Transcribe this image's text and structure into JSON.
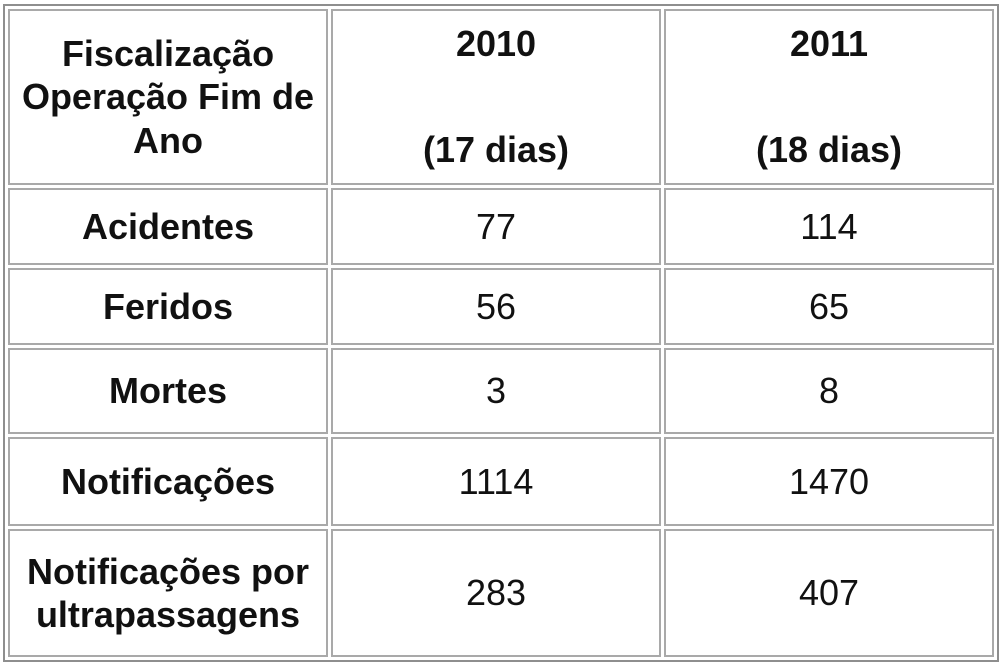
{
  "table": {
    "header": {
      "label": "Fiscalização Operação Fim de Ano",
      "columns": [
        {
          "year": "2010",
          "days": "(17 dias)"
        },
        {
          "year": "2011",
          "days": "(18 dias)"
        }
      ]
    },
    "rows": [
      {
        "label": "Acidentes",
        "values": [
          "77",
          "114"
        ]
      },
      {
        "label": "Feridos",
        "values": [
          "56",
          "65"
        ]
      },
      {
        "label": "Mortes",
        "values": [
          "3",
          "8"
        ]
      },
      {
        "label": "Notificações",
        "values": [
          "1114",
          "1470"
        ]
      },
      {
        "label": "Notificações por ultrapassagens",
        "values": [
          "283",
          "407"
        ]
      }
    ]
  }
}
